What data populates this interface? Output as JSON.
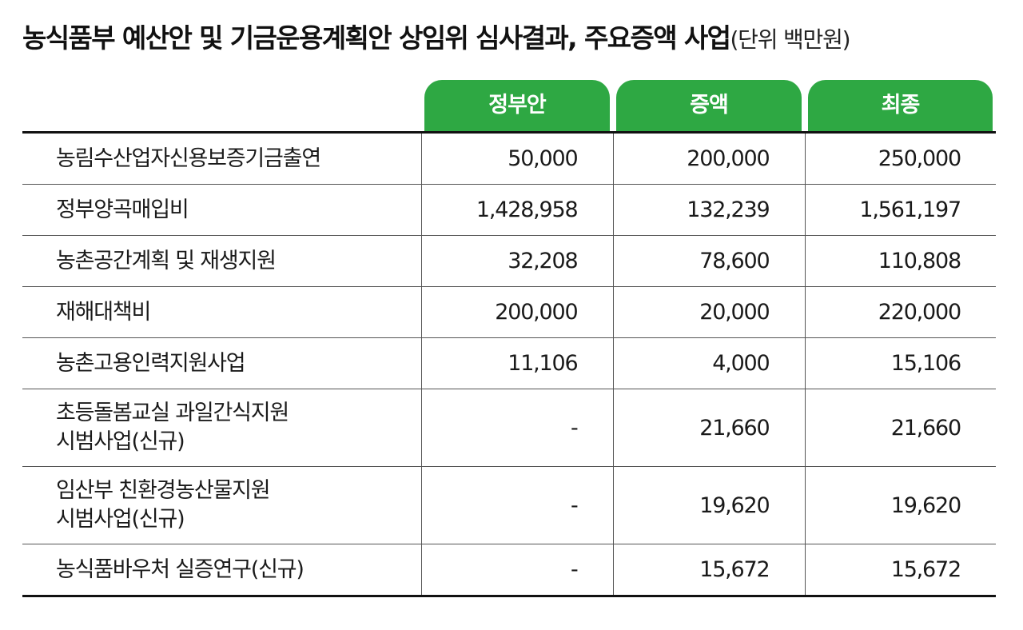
{
  "title": {
    "main": "농식품부 예산안 및 기금운용계획안 상임위 심사결과, 주요증액 사업",
    "unit": "(단위 백만원)"
  },
  "colors": {
    "header_green": "#2ea843",
    "rule": "#111111"
  },
  "chart_data": {
    "type": "table",
    "title": "농식품부 예산안 및 기금운용계획안 상임위 심사결과, 주요증액 사업",
    "unit": "(단위 백만원)",
    "columns": [
      "정부안",
      "증액",
      "최종"
    ],
    "rows": [
      {
        "label_lines": [
          "농림수산업자신용보증기금출연"
        ],
        "values": [
          "50,000",
          "200,000",
          "250,000"
        ]
      },
      {
        "label_lines": [
          "정부양곡매입비"
        ],
        "values": [
          "1,428,958",
          "132,239",
          "1,561,197"
        ]
      },
      {
        "label_lines": [
          "농촌공간계획 및 재생지원"
        ],
        "values": [
          "32,208",
          "78,600",
          "110,808"
        ]
      },
      {
        "label_lines": [
          "재해대책비"
        ],
        "values": [
          "200,000",
          "20,000",
          "220,000"
        ]
      },
      {
        "label_lines": [
          "농촌고용인력지원사업"
        ],
        "values": [
          "11,106",
          "4,000",
          "15,106"
        ]
      },
      {
        "label_lines": [
          "초등돌봄교실 과일간식지원",
          "시범사업(신규)"
        ],
        "values": [
          "-",
          "21,660",
          "21,660"
        ]
      },
      {
        "label_lines": [
          "임산부 친환경농산물지원",
          "시범사업(신규)"
        ],
        "values": [
          "-",
          "19,620",
          "19,620"
        ]
      },
      {
        "label_lines": [
          "농식품바우처 실증연구(신규)"
        ],
        "values": [
          "-",
          "15,672",
          "15,672"
        ]
      }
    ]
  }
}
